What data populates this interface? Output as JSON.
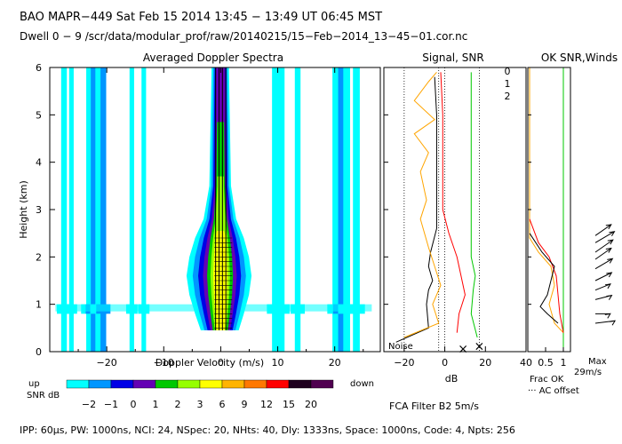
{
  "header": {
    "line1": "BAO  MAPR−449  Sat Feb 15 2014 13:45 − 13:49 UT 06:45 MST",
    "line2": "Dwell  0 −  9   /scr/data/modular_prof/raw/20140215/15−Feb−2014_13−45−01.cor.nc"
  },
  "footer": {
    "params": "IPP:  60μs,  PW: 1000ns,  NCI:  24,  NSpec: 20, NHts: 40,  Dly: 1333ns,  Space: 1000ns,  Code: 4,  Npts: 256",
    "filter": "FCA Filter B2   5m/s"
  },
  "colorbar": {
    "title_up": "up",
    "title_snr": "SNR dB",
    "down": "down",
    "levels": [
      "−2",
      "−1",
      "0",
      "1",
      "2",
      "3",
      "6",
      "9",
      "12",
      "15",
      "20"
    ],
    "colors": [
      "#00ffff",
      "#0096ff",
      "#0000e6",
      "#6400b4",
      "#00c800",
      "#96ff00",
      "#ffff00",
      "#ffb400",
      "#ff7800",
      "#ff0000",
      "#1e001e",
      "#500050"
    ]
  },
  "chart_data": [
    {
      "type": "heatmap",
      "title": "Averaged Doppler Spectra",
      "xlabel": "Doppler Velocity (m/s)",
      "ylabel": "Height (km)",
      "xlim": [
        -30,
        28
      ],
      "ylim": [
        0,
        6
      ],
      "xticks": [
        "−20",
        "−10",
        "0",
        "10",
        "20"
      ],
      "xtick_values": [
        -20,
        -10,
        0,
        10,
        20
      ],
      "yticks": [
        "0",
        "1",
        "2",
        "3",
        "4",
        "5",
        "6"
      ],
      "stripes": [
        {
          "v": -27.5,
          "w": 0.5,
          "color": "#00ffff"
        },
        {
          "v": -26.2,
          "w": 0.4,
          "color": "#00ffff"
        },
        {
          "v": -23.0,
          "w": 0.6,
          "color": "#00ffff"
        },
        {
          "v": -22.2,
          "w": 0.6,
          "color": "#0096ff"
        },
        {
          "v": -21.4,
          "w": 0.6,
          "color": "#00ffff"
        },
        {
          "v": -20.6,
          "w": 0.5,
          "color": "#0096ff"
        },
        {
          "v": -15.6,
          "w": 0.4,
          "color": "#00ffff"
        },
        {
          "v": -13.5,
          "w": 0.4,
          "color": "#00ffff"
        },
        {
          "v": 9.6,
          "w": 0.6,
          "color": "#00ffff"
        },
        {
          "v": 10.6,
          "w": 0.6,
          "color": "#00ffff"
        },
        {
          "v": 13.5,
          "w": 0.5,
          "color": "#00ffff"
        },
        {
          "v": 20.2,
          "w": 0.6,
          "color": "#00ffff"
        },
        {
          "v": 21.2,
          "w": 0.6,
          "color": "#0096ff"
        },
        {
          "v": 22.1,
          "w": 0.6,
          "color": "#00ffff"
        },
        {
          "v": 23.8,
          "w": 0.6,
          "color": "#00ffff"
        }
      ],
      "core": [
        {
          "h": 0.45,
          "hw": 3.5
        },
        {
          "h": 0.8,
          "hw": 4.5
        },
        {
          "h": 1.2,
          "hw": 5.5
        },
        {
          "h": 1.6,
          "hw": 6.0
        },
        {
          "h": 2.0,
          "hw": 5.5
        },
        {
          "h": 2.4,
          "hw": 4.5
        },
        {
          "h": 2.8,
          "hw": 3.0
        },
        {
          "h": 3.5,
          "hw": 2.0
        },
        {
          "h": 6.0,
          "hw": 1.6
        }
      ]
    },
    {
      "type": "line",
      "title": "Signal, SNR",
      "xlabel": "dB",
      "xlim": [
        -30,
        40
      ],
      "ylim": [
        0,
        6
      ],
      "xticks": [
        "−20",
        "0",
        "20",
        "40"
      ],
      "xtick_values": [
        -20,
        0,
        20,
        40
      ],
      "noise_label": "Noise",
      "series": [
        {
          "name": "signal",
          "color": "#000000",
          "points": [
            [
              -24,
              0.2
            ],
            [
              -8,
              0.5
            ],
            [
              -9,
              1.0
            ],
            [
              -8,
              1.3
            ],
            [
              -6,
              1.5
            ],
            [
              -8,
              1.8
            ],
            [
              -7,
              2.1
            ],
            [
              -4,
              2.6
            ],
            [
              -4,
              3.5
            ],
            [
              -4,
              5.0
            ],
            [
              -5,
              5.8
            ]
          ]
        },
        {
          "name": "snr",
          "color": "#ffa500",
          "points": [
            [
              -20,
              0.3
            ],
            [
              -3,
              0.6
            ],
            [
              -6,
              1.0
            ],
            [
              -2,
              1.4
            ],
            [
              -5,
              1.8
            ],
            [
              -8,
              2.2
            ],
            [
              -12,
              2.8
            ],
            [
              -9,
              3.2
            ],
            [
              -12,
              3.8
            ],
            [
              -8,
              4.2
            ],
            [
              -15,
              4.6
            ],
            [
              -5,
              4.9
            ],
            [
              -15,
              5.3
            ],
            [
              -8,
              5.7
            ],
            [
              -4,
              5.9
            ]
          ]
        },
        {
          "name": "snr2",
          "color": "#ff0000",
          "points": [
            [
              6,
              0.4
            ],
            [
              7,
              0.8
            ],
            [
              10,
              1.2
            ],
            [
              8,
              1.6
            ],
            [
              6,
              2.0
            ],
            [
              2,
              2.5
            ],
            [
              -1,
              3.0
            ],
            [
              -1,
              4.0
            ],
            [
              -1,
              5.0
            ],
            [
              -2,
              5.9
            ]
          ]
        },
        {
          "name": "snr3",
          "color": "#00c800",
          "points": [
            [
              16,
              0.3
            ],
            [
              13,
              0.8
            ],
            [
              14,
              1.3
            ],
            [
              15,
              1.6
            ],
            [
              13,
              2.0
            ],
            [
              13,
              2.5
            ],
            [
              13,
              4.0
            ],
            [
              13,
              5.9
            ]
          ]
        }
      ],
      "dotted_verticals": [
        -20,
        -3,
        0,
        17
      ],
      "markers": [
        {
          "x": 9,
          "y": 0.05,
          "color": "#ff0000",
          "label": "×"
        },
        {
          "x": 17,
          "y": 0.1,
          "color": "#00c800",
          "label": "×"
        }
      ],
      "legend": [
        {
          "label": "0",
          "color": "#ff0000"
        },
        {
          "label": "1",
          "color": "#ffa500"
        },
        {
          "label": "2",
          "color": "#00c800"
        }
      ]
    },
    {
      "type": "line",
      "title": "OK SNR,Winds",
      "xlabel": "Frac OK",
      "xlim": [
        0,
        1.2
      ],
      "ylim": [
        0,
        6
      ],
      "xticks": [
        "0.5",
        "1"
      ],
      "xtick_values": [
        0.5,
        1
      ],
      "note": "··· AC offset",
      "series": [
        {
          "name": "green",
          "color": "#00c800",
          "points": [
            [
              1.0,
              0.0
            ],
            [
              1.0,
              6.0
            ]
          ]
        },
        {
          "name": "orange",
          "color": "#ffa500",
          "points": [
            [
              0.05,
              6.0
            ],
            [
              0.05,
              2.4
            ],
            [
              0.3,
              2.1
            ],
            [
              0.65,
              1.8
            ],
            [
              0.75,
              1.4
            ],
            [
              0.6,
              1.0
            ],
            [
              0.75,
              0.6
            ],
            [
              1.0,
              0.4
            ]
          ]
        },
        {
          "name": "red",
          "color": "#ff0000",
          "points": [
            [
              0.05,
              2.8
            ],
            [
              0.3,
              2.3
            ],
            [
              0.6,
              2.0
            ],
            [
              0.8,
              1.6
            ],
            [
              0.85,
              1.2
            ],
            [
              0.9,
              0.8
            ],
            [
              1.0,
              0.4
            ]
          ]
        },
        {
          "name": "black",
          "color": "#000000",
          "points": [
            [
              0.05,
              2.5
            ],
            [
              0.4,
              2.1
            ],
            [
              0.75,
              1.8
            ],
            [
              0.65,
              1.5
            ],
            [
              0.55,
              1.2
            ],
            [
              0.35,
              0.95
            ],
            [
              0.55,
              0.8
            ],
            [
              0.85,
              0.6
            ]
          ]
        }
      ],
      "winds_title_max": "Max",
      "winds_max": "29m/s",
      "winds": [
        {
          "h": 0.6,
          "dir": 280,
          "speed": 0.8
        },
        {
          "h": 0.8,
          "dir": 270,
          "speed": 0.6
        },
        {
          "h": 1.1,
          "dir": 250,
          "speed": 0.7
        },
        {
          "h": 1.3,
          "dir": 240,
          "speed": 0.7
        },
        {
          "h": 1.5,
          "dir": 235,
          "speed": 0.8
        },
        {
          "h": 1.75,
          "dir": 230,
          "speed": 0.9
        },
        {
          "h": 1.95,
          "dir": 225,
          "speed": 0.9
        },
        {
          "h": 2.1,
          "dir": 225,
          "speed": 1.0
        },
        {
          "h": 2.3,
          "dir": 230,
          "speed": 1.0
        },
        {
          "h": 2.45,
          "dir": 225,
          "speed": 0.9
        }
      ]
    }
  ]
}
